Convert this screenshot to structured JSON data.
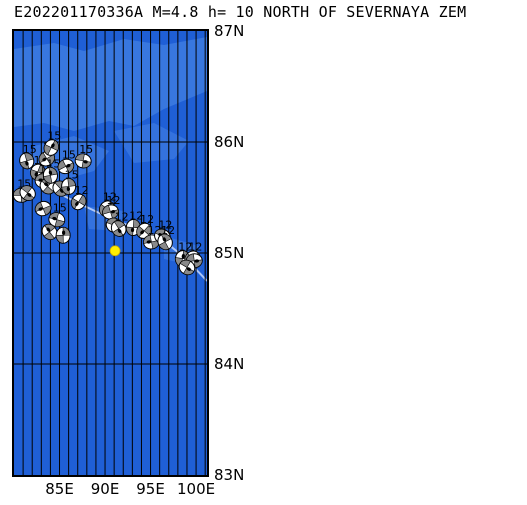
{
  "title": "E202201170336A M=4.8 h= 10 NORTH OF SEVERNAYA ZEM",
  "map": {
    "lat_labels": [
      "87N",
      "86N",
      "85N",
      "84N",
      "83N"
    ],
    "lon_labels": [
      "85E",
      "90E",
      "95E",
      "100E"
    ],
    "colors": {
      "ocean": "#1f5fd6",
      "land": "#4d8ae8",
      "grid": "#000000",
      "epicenter": "#ffee00"
    },
    "epicenter": {
      "lon": 91.1,
      "lat": 85.02
    },
    "mechanisms": [
      {
        "lon": 80.8,
        "lat": 85.52,
        "label": "15"
      },
      {
        "lon": 81.5,
        "lat": 85.54,
        "label": ""
      },
      {
        "lon": 81.4,
        "lat": 85.83,
        "label": "15"
      },
      {
        "lon": 82.6,
        "lat": 85.73,
        "label": "15"
      },
      {
        "lon": 83.6,
        "lat": 85.85,
        "label": "15"
      },
      {
        "lon": 83.2,
        "lat": 85.65,
        "label": "15"
      },
      {
        "lon": 83.7,
        "lat": 85.6,
        "label": "15"
      },
      {
        "lon": 84.0,
        "lat": 85.7,
        "label": "15"
      },
      {
        "lon": 84.1,
        "lat": 85.95,
        "label": "15"
      },
      {
        "lon": 85.7,
        "lat": 85.78,
        "label": "15"
      },
      {
        "lon": 87.6,
        "lat": 85.83,
        "label": "15"
      },
      {
        "lon": 85.1,
        "lat": 85.58,
        "label": ""
      },
      {
        "lon": 86.0,
        "lat": 85.6,
        "label": "15"
      },
      {
        "lon": 87.1,
        "lat": 85.46,
        "label": "12"
      },
      {
        "lon": 83.2,
        "lat": 85.4,
        "label": ""
      },
      {
        "lon": 84.7,
        "lat": 85.3,
        "label": "15"
      },
      {
        "lon": 83.9,
        "lat": 85.19,
        "label": ""
      },
      {
        "lon": 85.4,
        "lat": 85.16,
        "label": ""
      },
      {
        "lon": 90.2,
        "lat": 85.4,
        "label": "12"
      },
      {
        "lon": 90.6,
        "lat": 85.37,
        "label": "12"
      },
      {
        "lon": 91.0,
        "lat": 85.25,
        "label": ""
      },
      {
        "lon": 91.5,
        "lat": 85.22,
        "label": "12"
      },
      {
        "lon": 93.1,
        "lat": 85.23,
        "label": "12"
      },
      {
        "lon": 94.3,
        "lat": 85.2,
        "label": "12"
      },
      {
        "lon": 95.1,
        "lat": 85.1,
        "label": "12"
      },
      {
        "lon": 96.3,
        "lat": 85.15,
        "label": "12"
      },
      {
        "lon": 96.6,
        "lat": 85.1,
        "label": "12"
      },
      {
        "lon": 98.5,
        "lat": 84.95,
        "label": "12"
      },
      {
        "lon": 99.6,
        "lat": 84.95,
        "label": "12"
      },
      {
        "lon": 99.8,
        "lat": 84.93,
        "label": ""
      },
      {
        "lon": 99.0,
        "lat": 84.87,
        "label": ""
      }
    ]
  }
}
